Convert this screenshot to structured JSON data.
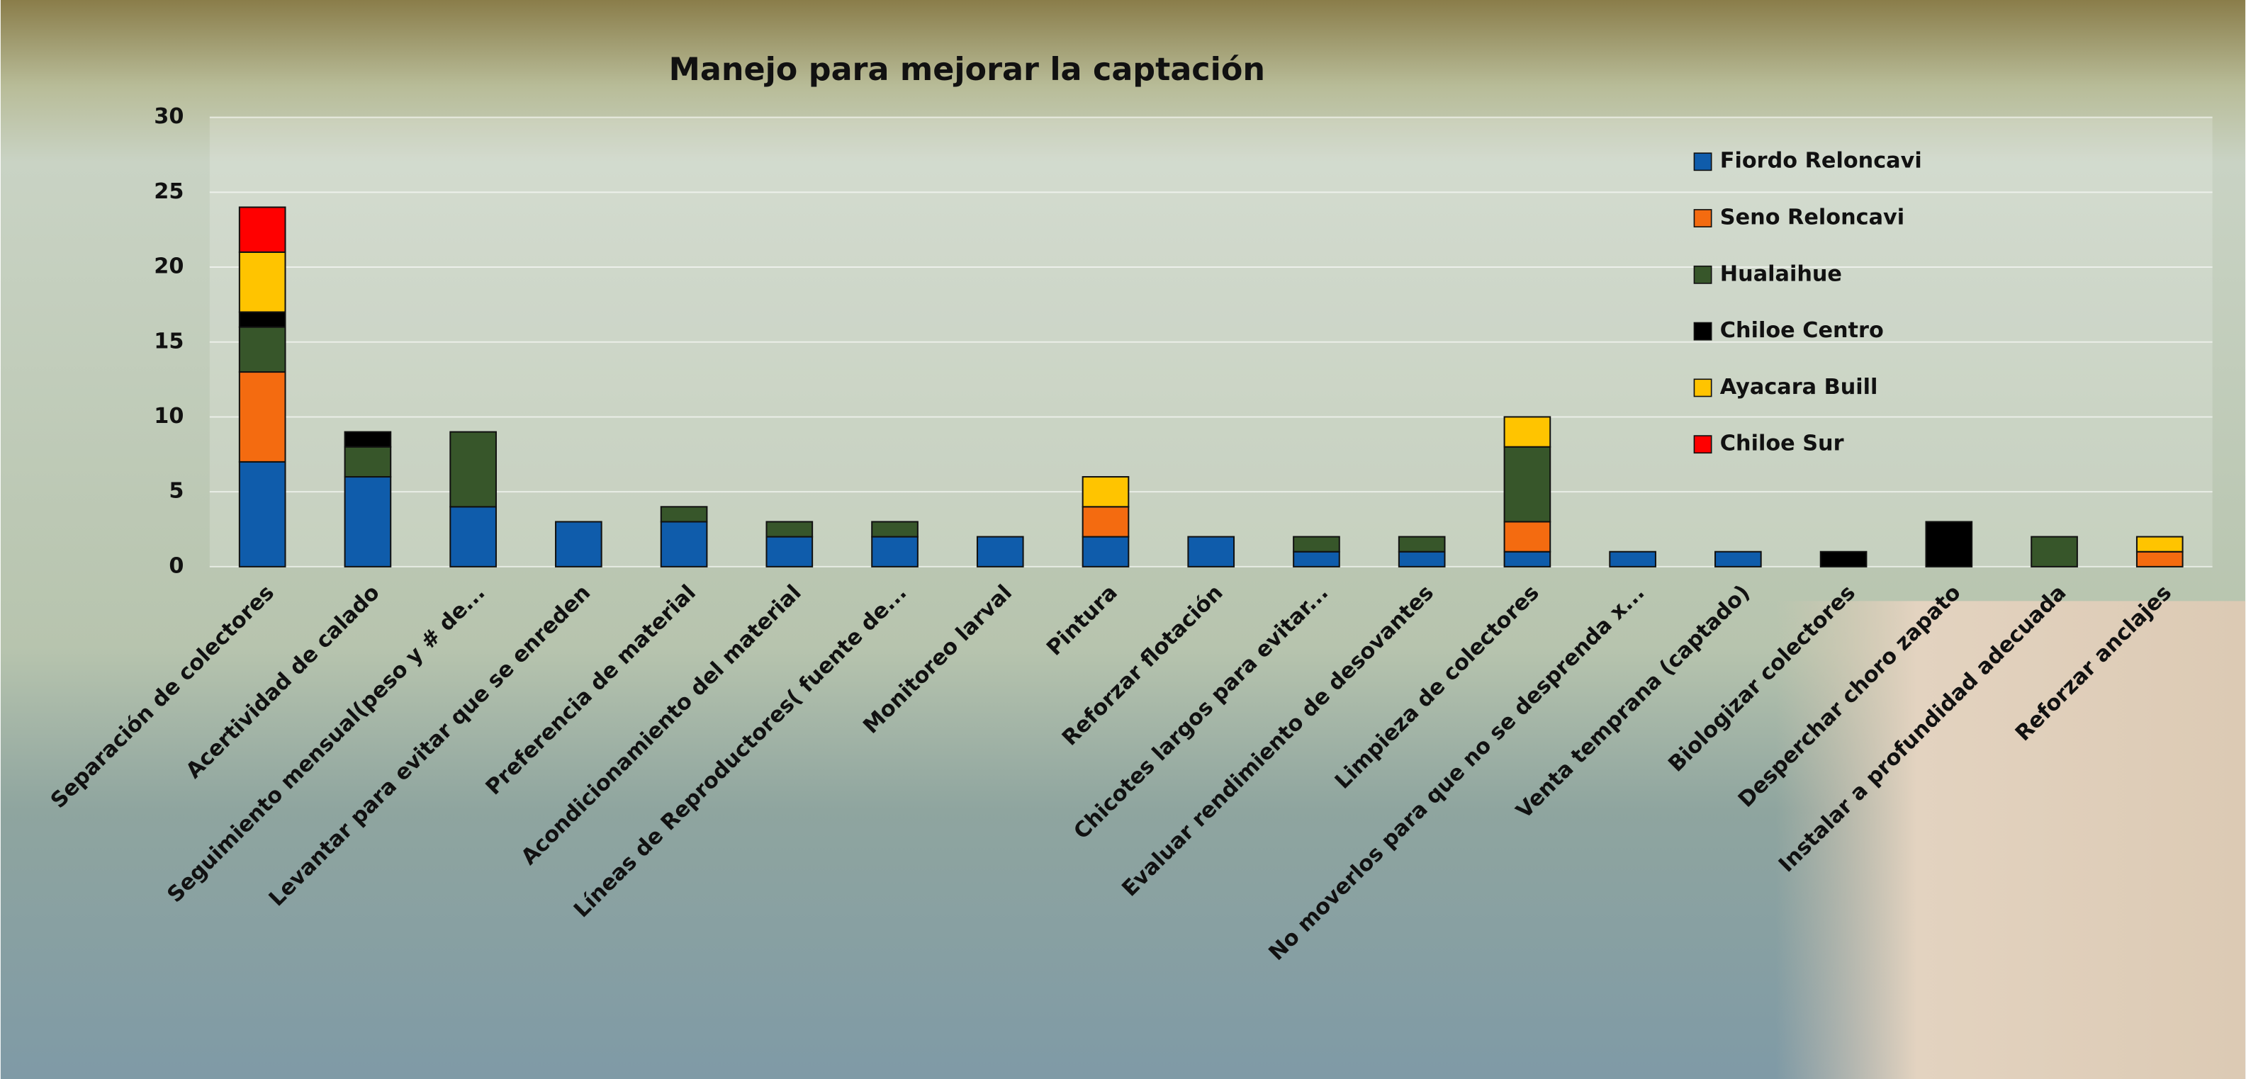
{
  "chart_data": {
    "type": "stacked-bar",
    "title": "Manejo para mejorar la captación",
    "categories": [
      "Separación de colectores",
      "Acertividad de calado",
      "Seguimiento mensual(peso y # de...",
      "Levantar para evitar que se enreden",
      "Preferencia de material",
      "Acondicionamiento del material",
      "Líneas de Reproductores( fuente de...",
      "Monitoreo larval",
      "Pintura",
      "Reforzar flotación",
      "Chicotes largos para evitar...",
      "Evaluar rendimiento de desovantes",
      "Limpieza de colectores",
      "No moverlos para que no se desprenda x...",
      "Venta temprana (captado)",
      "Biologizar colectores",
      "Desperchar choro zapato",
      "Instalar a profundidad adecuada",
      "Reforzar anclajes"
    ],
    "series": [
      {
        "name": "Fiordo Reloncavi",
        "color": "#0f5cab",
        "values": [
          7,
          6,
          4,
          3,
          3,
          2,
          2,
          2,
          2,
          2,
          1,
          1,
          1,
          1,
          1,
          0,
          0,
          0,
          0
        ]
      },
      {
        "name": "Seno Reloncavi",
        "color": "#f46b10",
        "values": [
          6,
          0,
          0,
          0,
          0,
          0,
          0,
          0,
          2,
          0,
          0,
          0,
          2,
          0,
          0,
          0,
          0,
          0,
          1
        ]
      },
      {
        "name": "Hualaihue",
        "color": "#37562a",
        "values": [
          3,
          2,
          5,
          0,
          1,
          1,
          1,
          0,
          0,
          0,
          1,
          1,
          5,
          0,
          0,
          0,
          0,
          2,
          0
        ]
      },
      {
        "name": "Chiloe Centro",
        "color": "#000000",
        "values": [
          1,
          1,
          0,
          0,
          0,
          0,
          0,
          0,
          0,
          0,
          0,
          0,
          0,
          0,
          0,
          1,
          3,
          0,
          0
        ]
      },
      {
        "name": "Ayacara Buill",
        "color": "#ffc400",
        "values": [
          4,
          0,
          0,
          0,
          0,
          0,
          0,
          0,
          2,
          0,
          0,
          0,
          2,
          0,
          0,
          0,
          0,
          0,
          1
        ]
      },
      {
        "name": "Chiloe Sur",
        "color": "#ff0000",
        "values": [
          3,
          0,
          0,
          0,
          0,
          0,
          0,
          0,
          0,
          0,
          0,
          0,
          0,
          0,
          0,
          0,
          0,
          0,
          0
        ]
      }
    ],
    "ylim": [
      0,
      30
    ],
    "yticks": [
      0,
      5,
      10,
      15,
      20,
      25,
      30
    ],
    "grid": true,
    "legend": "upper right"
  }
}
